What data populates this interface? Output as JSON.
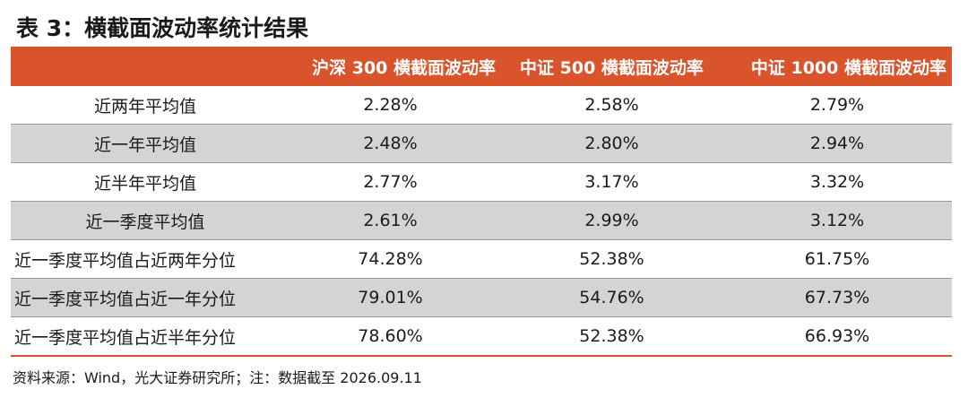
{
  "title": "表 3：横截面波动率统计结果",
  "table": {
    "headers": [
      "",
      "沪深 300 横截面波动率",
      "中证 500 横截面波动率",
      "中证 1000 横截面波动率"
    ],
    "rows": [
      {
        "label": "近两年平均值",
        "values": [
          "2.28%",
          "2.58%",
          "2.79%"
        ]
      },
      {
        "label": "近一年平均值",
        "values": [
          "2.48%",
          "2.80%",
          "2.94%"
        ]
      },
      {
        "label": "近半年平均值",
        "values": [
          "2.77%",
          "3.17%",
          "3.32%"
        ]
      },
      {
        "label": "近一季度平均值",
        "values": [
          "2.61%",
          "2.99%",
          "3.12%"
        ]
      },
      {
        "label": "近一季度平均值占近两年分位",
        "values": [
          "74.28%",
          "52.38%",
          "61.75%"
        ]
      },
      {
        "label": "近一季度平均值占近一年分位",
        "values": [
          "79.01%",
          "54.76%",
          "67.73%"
        ]
      },
      {
        "label": "近一季度平均值占近半年分位",
        "values": [
          "78.60%",
          "52.38%",
          "66.93%"
        ]
      }
    ]
  },
  "source": "资料来源：Wind，光大证券研究所；注：数据截至 2026.09.11",
  "colors": {
    "header_bg": "#d9532b",
    "alt_row_bg": "#d4d4d4"
  }
}
